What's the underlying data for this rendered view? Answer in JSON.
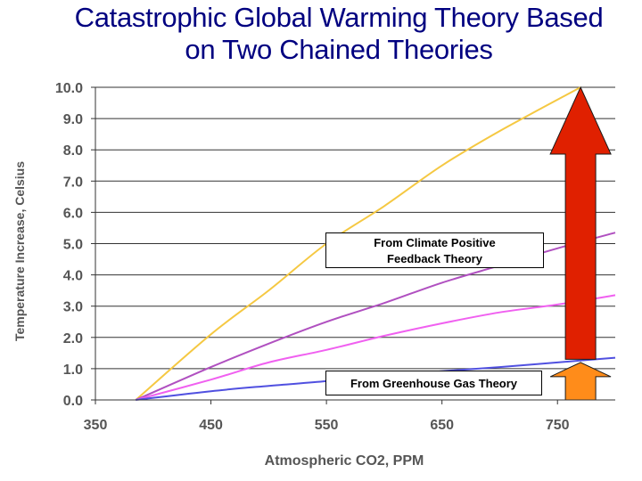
{
  "title_lines": [
    "Catastrophic Global Warming Theory Based",
    "on Two Chained Theories"
  ],
  "chart_data": {
    "type": "line",
    "title": "Catastrophic Global Warming Theory Based on Two Chained Theories",
    "xlabel": "Atmospheric CO2, PPM",
    "ylabel": "Temperature Increase, Celsius",
    "xlim": [
      350,
      800
    ],
    "ylim": [
      0,
      10
    ],
    "x_ticks": [
      "350",
      "450",
      "550",
      "650",
      "750"
    ],
    "y_ticks": [
      "0.0",
      "1.0",
      "2.0",
      "3.0",
      "4.0",
      "5.0",
      "6.0",
      "7.0",
      "8.0",
      "9.0",
      "10.0"
    ],
    "grid": "horizontal",
    "colors": {
      "axis_text": "#555555",
      "title": "#000080",
      "big_arrow": "#e02000",
      "small_arrow": "#ff8c1a"
    },
    "series": [
      {
        "color": "#f5c842",
        "points": [
          [
            385,
            0
          ],
          [
            450,
            2.1
          ],
          [
            500,
            3.5
          ],
          [
            550,
            5.0
          ],
          [
            600,
            6.2
          ],
          [
            650,
            7.5
          ],
          [
            700,
            8.6
          ],
          [
            770,
            10.0
          ]
        ]
      },
      {
        "color": "#b050c0",
        "points": [
          [
            385,
            0
          ],
          [
            450,
            1.05
          ],
          [
            500,
            1.8
          ],
          [
            550,
            2.5
          ],
          [
            600,
            3.1
          ],
          [
            650,
            3.75
          ],
          [
            700,
            4.3
          ],
          [
            750,
            4.85
          ],
          [
            800,
            5.35
          ]
        ]
      },
      {
        "color": "#f060f0",
        "points": [
          [
            385,
            0
          ],
          [
            450,
            0.65
          ],
          [
            500,
            1.2
          ],
          [
            550,
            1.6
          ],
          [
            600,
            2.05
          ],
          [
            650,
            2.45
          ],
          [
            700,
            2.8
          ],
          [
            750,
            3.05
          ],
          [
            800,
            3.35
          ]
        ]
      },
      {
        "color": "#5050e0",
        "points": [
          [
            385,
            0
          ],
          [
            450,
            0.28
          ],
          [
            500,
            0.45
          ],
          [
            550,
            0.6
          ],
          [
            600,
            0.78
          ],
          [
            650,
            0.92
          ],
          [
            700,
            1.05
          ],
          [
            750,
            1.2
          ],
          [
            800,
            1.35
          ]
        ]
      }
    ],
    "arrows": [
      {
        "name": "climate-feedback-arrow",
        "x": 770,
        "from": 1.3,
        "to": 10.0
      },
      {
        "name": "greenhouse-gas-arrow",
        "x": 770,
        "from": 0,
        "to": 1.2
      }
    ],
    "annotations": [
      {
        "text_lines": [
          "From Climate Positive",
          "Feedback Theory"
        ]
      },
      {
        "text_lines": [
          "From Greenhouse Gas Theory"
        ]
      }
    ]
  }
}
